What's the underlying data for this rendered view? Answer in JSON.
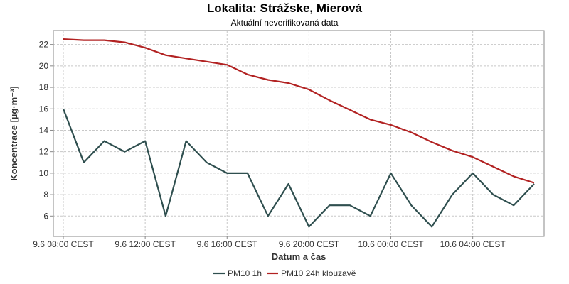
{
  "chart_data": {
    "type": "line",
    "title": "Lokalita: Strážske, Mierová",
    "subtitle": "Aktuální neverifikovaná data",
    "xlabel": "Datum a čas",
    "ylabel": "Koncentrace [µg·m⁻³]",
    "x": [
      "9.6 08:00",
      "9.6 09:00",
      "9.6 10:00",
      "9.6 11:00",
      "9.6 12:00",
      "9.6 13:00",
      "9.6 14:00",
      "9.6 15:00",
      "9.6 16:00",
      "9.6 17:00",
      "9.6 18:00",
      "9.6 19:00",
      "9.6 20:00",
      "9.6 21:00",
      "9.6 22:00",
      "9.6 23:00",
      "10.6 00:00",
      "10.6 01:00",
      "10.6 02:00",
      "10.6 03:00",
      "10.6 04:00",
      "10.6 05:00",
      "10.6 06:00",
      "10.6 07:00"
    ],
    "x_ticks": [
      "9.6 08:00 CEST",
      "9.6 12:00 CEST",
      "9.6 16:00 CEST",
      "9.6 20:00 CEST",
      "10.6 00:00 CEST",
      "10.6 04:00 CEST"
    ],
    "y_ticks": [
      6,
      8,
      10,
      12,
      14,
      16,
      18,
      20,
      22
    ],
    "ylim": [
      4.1,
      23.3
    ],
    "grid": true,
    "legend_position": "bottom",
    "series": [
      {
        "name": "PM10 1h",
        "color": "#2f4f4f",
        "values": [
          16,
          11,
          13,
          12,
          13,
          6,
          13,
          11,
          10,
          10,
          6,
          9,
          5,
          7,
          7,
          6,
          10,
          7,
          5,
          8,
          10,
          8,
          7,
          9
        ]
      },
      {
        "name": "PM10 24h klouzavě",
        "color": "#b22222",
        "values": [
          22.5,
          22.4,
          22.4,
          22.2,
          21.7,
          21.0,
          20.7,
          20.4,
          20.1,
          19.2,
          18.7,
          18.4,
          17.8,
          16.8,
          15.9,
          15.0,
          14.5,
          13.8,
          12.9,
          12.1,
          11.5,
          10.6,
          9.7,
          9.1
        ]
      }
    ]
  }
}
